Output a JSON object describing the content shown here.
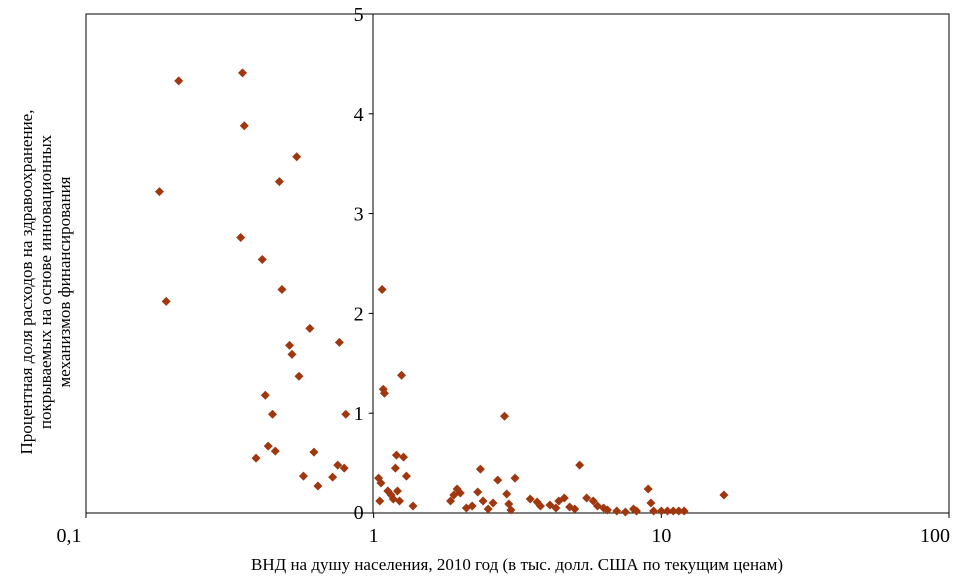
{
  "chart_data": {
    "type": "scatter",
    "title": "",
    "xlabel": "ВНД на душу населения, 2010 год (в тыс. долл. США по текущим ценам)",
    "ylabel_lines": [
      "Процентная доля расходов на здравоохранение,",
      "покрываемых на основе инновационных",
      "механизмов финансирования"
    ],
    "x_scale": "log",
    "xlim": [
      0.1,
      100
    ],
    "ylim": [
      0,
      5
    ],
    "x_ticks": [
      {
        "value": 0.1,
        "label": "0,1"
      },
      {
        "value": 1,
        "label": "1"
      },
      {
        "value": 10,
        "label": "10"
      },
      {
        "value": 100,
        "label": "100"
      }
    ],
    "y_ticks": [
      {
        "value": 0,
        "label": "0"
      },
      {
        "value": 1,
        "label": "1"
      },
      {
        "value": 2,
        "label": "2"
      },
      {
        "value": 3,
        "label": "3"
      },
      {
        "value": 4,
        "label": "4"
      },
      {
        "value": 5,
        "label": "5"
      }
    ],
    "grid": false,
    "legend": "none",
    "marker": "diamond",
    "marker_color": "#a0370f",
    "points": [
      {
        "x": 0.18,
        "y": 3.22
      },
      {
        "x": 0.19,
        "y": 2.12
      },
      {
        "x": 0.21,
        "y": 4.33
      },
      {
        "x": 0.35,
        "y": 4.41
      },
      {
        "x": 0.355,
        "y": 3.88
      },
      {
        "x": 0.345,
        "y": 2.76
      },
      {
        "x": 0.39,
        "y": 0.55
      },
      {
        "x": 0.41,
        "y": 2.54
      },
      {
        "x": 0.42,
        "y": 1.18
      },
      {
        "x": 0.43,
        "y": 0.67
      },
      {
        "x": 0.445,
        "y": 0.99
      },
      {
        "x": 0.455,
        "y": 0.62
      },
      {
        "x": 0.47,
        "y": 3.32
      },
      {
        "x": 0.48,
        "y": 2.24
      },
      {
        "x": 0.51,
        "y": 1.68
      },
      {
        "x": 0.52,
        "y": 1.59
      },
      {
        "x": 0.54,
        "y": 3.57
      },
      {
        "x": 0.55,
        "y": 1.37
      },
      {
        "x": 0.57,
        "y": 0.37
      },
      {
        "x": 0.6,
        "y": 1.85
      },
      {
        "x": 0.62,
        "y": 0.61
      },
      {
        "x": 0.64,
        "y": 0.27
      },
      {
        "x": 0.72,
        "y": 0.36
      },
      {
        "x": 0.75,
        "y": 0.48
      },
      {
        "x": 0.76,
        "y": 1.71
      },
      {
        "x": 0.79,
        "y": 0.45
      },
      {
        "x": 0.8,
        "y": 0.99
      },
      {
        "x": 1.04,
        "y": 0.35
      },
      {
        "x": 1.05,
        "y": 0.12
      },
      {
        "x": 1.06,
        "y": 0.3
      },
      {
        "x": 1.07,
        "y": 2.24
      },
      {
        "x": 1.08,
        "y": 1.24
      },
      {
        "x": 1.09,
        "y": 1.2
      },
      {
        "x": 1.12,
        "y": 0.22
      },
      {
        "x": 1.15,
        "y": 0.18
      },
      {
        "x": 1.17,
        "y": 0.14
      },
      {
        "x": 1.19,
        "y": 0.45
      },
      {
        "x": 1.2,
        "y": 0.58
      },
      {
        "x": 1.21,
        "y": 0.22
      },
      {
        "x": 1.23,
        "y": 0.12
      },
      {
        "x": 1.25,
        "y": 1.38
      },
      {
        "x": 1.27,
        "y": 0.56
      },
      {
        "x": 1.3,
        "y": 0.37
      },
      {
        "x": 1.37,
        "y": 0.07
      },
      {
        "x": 1.85,
        "y": 0.12
      },
      {
        "x": 1.9,
        "y": 0.18
      },
      {
        "x": 1.95,
        "y": 0.24
      },
      {
        "x": 2.0,
        "y": 0.2
      },
      {
        "x": 2.1,
        "y": 0.05
      },
      {
        "x": 2.2,
        "y": 0.07
      },
      {
        "x": 2.3,
        "y": 0.21
      },
      {
        "x": 2.35,
        "y": 0.44
      },
      {
        "x": 2.4,
        "y": 0.12
      },
      {
        "x": 2.5,
        "y": 0.04
      },
      {
        "x": 2.6,
        "y": 0.1
      },
      {
        "x": 2.7,
        "y": 0.33
      },
      {
        "x": 2.85,
        "y": 0.97
      },
      {
        "x": 2.9,
        "y": 0.19
      },
      {
        "x": 2.95,
        "y": 0.09
      },
      {
        "x": 3.0,
        "y": 0.03
      },
      {
        "x": 3.1,
        "y": 0.35
      },
      {
        "x": 3.5,
        "y": 0.14
      },
      {
        "x": 3.7,
        "y": 0.11
      },
      {
        "x": 3.8,
        "y": 0.07
      },
      {
        "x": 4.1,
        "y": 0.08
      },
      {
        "x": 4.3,
        "y": 0.05
      },
      {
        "x": 4.4,
        "y": 0.12
      },
      {
        "x": 4.6,
        "y": 0.15
      },
      {
        "x": 4.8,
        "y": 0.06
      },
      {
        "x": 5.0,
        "y": 0.04
      },
      {
        "x": 5.2,
        "y": 0.48
      },
      {
        "x": 5.5,
        "y": 0.15
      },
      {
        "x": 5.8,
        "y": 0.12
      },
      {
        "x": 6.0,
        "y": 0.07
      },
      {
        "x": 6.3,
        "y": 0.05
      },
      {
        "x": 6.5,
        "y": 0.03
      },
      {
        "x": 7.0,
        "y": 0.02
      },
      {
        "x": 7.5,
        "y": 0.01
      },
      {
        "x": 8.0,
        "y": 0.04
      },
      {
        "x": 8.2,
        "y": 0.02
      },
      {
        "x": 9.0,
        "y": 0.24
      },
      {
        "x": 9.2,
        "y": 0.1
      },
      {
        "x": 9.4,
        "y": 0.02
      },
      {
        "x": 10.0,
        "y": 0.02
      },
      {
        "x": 10.5,
        "y": 0.02
      },
      {
        "x": 11.0,
        "y": 0.02
      },
      {
        "x": 11.5,
        "y": 0.02
      },
      {
        "x": 12.0,
        "y": 0.02
      },
      {
        "x": 16.5,
        "y": 0.18
      }
    ]
  }
}
